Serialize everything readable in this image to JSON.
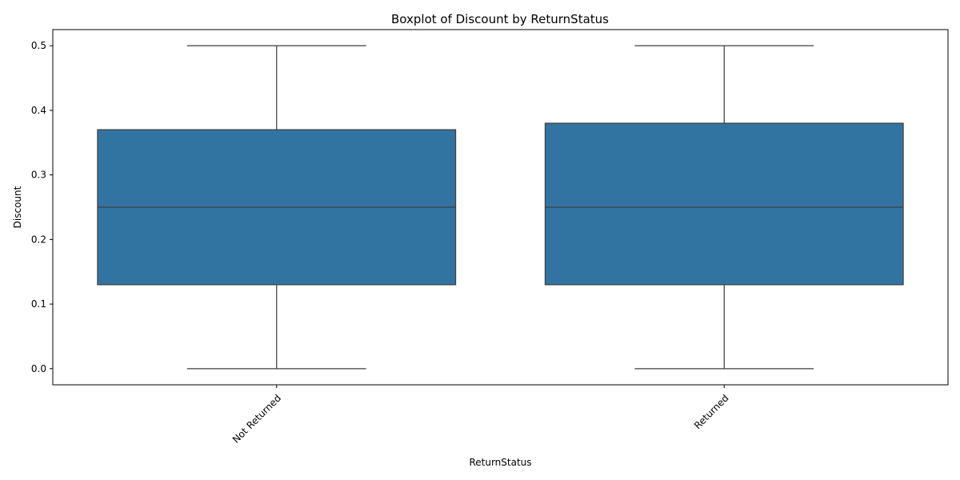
{
  "chart_data": {
    "type": "box",
    "title": "Boxplot of Discount by ReturnStatus",
    "xlabel": "ReturnStatus",
    "ylabel": "Discount",
    "categories": [
      "Not Returned",
      "Returned"
    ],
    "boxes": [
      {
        "category": "Not Returned",
        "min": 0.0,
        "q1": 0.13,
        "median": 0.25,
        "q3": 0.37,
        "max": 0.5
      },
      {
        "category": "Returned",
        "min": 0.0,
        "q1": 0.13,
        "median": 0.25,
        "q3": 0.38,
        "max": 0.5
      }
    ],
    "y_ticks": [
      "0.0",
      "0.1",
      "0.2",
      "0.3",
      "0.4",
      "0.5"
    ],
    "y_tick_values": [
      0.0,
      0.1,
      0.2,
      0.3,
      0.4,
      0.5
    ],
    "ylim": [
      -0.025,
      0.525
    ],
    "x_tick_rotation_deg": 45,
    "grid": false,
    "legend": "none",
    "colors": {
      "box_fill": "#3274a1",
      "box_edge": "#3f3f3f",
      "axis": "#000000"
    }
  }
}
